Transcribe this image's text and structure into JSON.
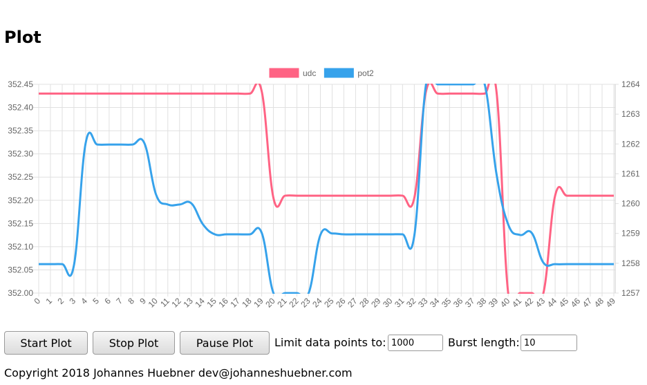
{
  "header": {
    "title": "Plot"
  },
  "chart_data": {
    "type": "line",
    "categories": [
      "0",
      "1",
      "2",
      "3",
      "4",
      "5",
      "6",
      "7",
      "8",
      "9",
      "10",
      "11",
      "12",
      "13",
      "14",
      "15",
      "16",
      "17",
      "18",
      "19",
      "20",
      "21",
      "22",
      "23",
      "24",
      "25",
      "26",
      "27",
      "28",
      "29",
      "30",
      "31",
      "32",
      "33",
      "34",
      "35",
      "36",
      "37",
      "38",
      "39",
      "40",
      "41",
      "42",
      "43",
      "44",
      "45",
      "46",
      "47",
      "48",
      "49"
    ],
    "series": [
      {
        "name": "udc",
        "color": "#ff6384",
        "values": [
          352.43,
          352.43,
          352.43,
          352.43,
          352.43,
          352.43,
          352.43,
          352.43,
          352.43,
          352.43,
          352.43,
          352.43,
          352.43,
          352.43,
          352.43,
          352.43,
          352.43,
          352.43,
          352.43,
          352.435,
          352.205,
          352.21,
          352.21,
          352.21,
          352.21,
          352.21,
          352.21,
          352.21,
          352.21,
          352.21,
          352.21,
          352.21,
          352.205,
          352.435,
          352.43,
          352.43,
          352.43,
          352.43,
          352.43,
          352.435,
          352,
          352,
          352,
          352,
          352.21,
          352.21,
          352.21,
          352.21,
          352.21,
          352.21
        ]
      },
      {
        "name": "pot2",
        "color": "#36a2eb",
        "axis": "y2",
        "values": [
          1257.97,
          1257.97,
          1257.97,
          1257.93,
          1262.03,
          1261.98,
          1261.98,
          1261.98,
          1261.98,
          1262.03,
          1260.3,
          1259.97,
          1259.97,
          1260.01,
          1259.3,
          1258.97,
          1258.97,
          1258.97,
          1258.97,
          1259.02,
          1257,
          1257,
          1257,
          1257,
          1258.95,
          1259,
          1258.97,
          1258.97,
          1258.97,
          1258.97,
          1258.97,
          1258.97,
          1258.92,
          1264,
          1264,
          1264,
          1264,
          1264,
          1264,
          1261,
          1259.3,
          1258.95,
          1259.02,
          1258.02,
          1257.97,
          1257.97,
          1257.97,
          1257.97,
          1257.97,
          1257.97
        ]
      }
    ],
    "ylim": [
      352,
      352.45
    ],
    "yticks": [
      {
        "value": 352,
        "label": "352.00"
      },
      352.05,
      {
        "value": 352.1,
        "label": "352.10"
      },
      352.15,
      {
        "value": 352.2,
        "label": "352.20"
      },
      352.25,
      {
        "value": 352.3,
        "label": "352.30"
      },
      352.35,
      {
        "value": 352.4,
        "label": "352.40"
      },
      352.45
    ],
    "y2lim": [
      1257,
      1264
    ],
    "y2ticks": [
      1257,
      1258,
      1259,
      1260,
      1261,
      1262,
      1263,
      1264
    ],
    "grid": true,
    "legend": "top"
  },
  "controls": {
    "buttons": [
      "Start Plot",
      "Stop Plot",
      "Pause Plot"
    ],
    "limit_label": "Limit data points to:",
    "limit_value": "1000",
    "burst_label": "Burst length:",
    "burst_value": "10"
  },
  "footer": "Copyright 2018 Johannes Huebner dev@johanneshuebner.com"
}
